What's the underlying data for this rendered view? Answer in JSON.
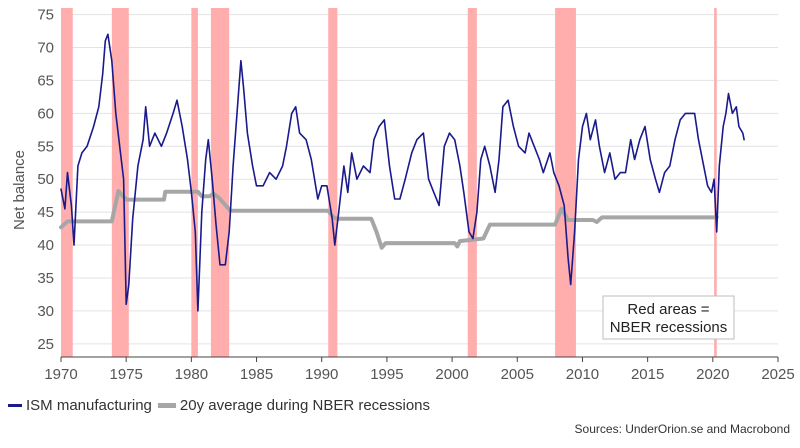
{
  "chart_data": {
    "type": "line",
    "ylabel": "Net balance",
    "xlabel": "",
    "ylim": [
      23,
      76
    ],
    "xlim": [
      1970,
      2025
    ],
    "yticks": [
      25,
      30,
      35,
      40,
      45,
      50,
      55,
      60,
      65,
      70,
      75
    ],
    "xticks": [
      1970,
      1975,
      1980,
      1985,
      1990,
      1995,
      2000,
      2005,
      2010,
      2015,
      2020,
      2025
    ],
    "grid": true,
    "legend_position": "bottom-left",
    "recessions": [
      [
        1970.0,
        1970.9
      ],
      [
        1973.9,
        1975.2
      ],
      [
        1980.0,
        1980.5
      ],
      [
        1981.5,
        1982.9
      ],
      [
        1990.5,
        1991.2
      ],
      [
        2001.2,
        2001.9
      ],
      [
        2007.9,
        2009.5
      ],
      [
        2020.1,
        2020.3
      ]
    ],
    "annotation": {
      "line1": "Red areas =",
      "line2": "NBER recessions"
    },
    "series": [
      {
        "name": "ISM manufacturing",
        "color": "#1a1a8c",
        "points": [
          [
            1970.0,
            48.5
          ],
          [
            1970.3,
            45.5
          ],
          [
            1970.5,
            51
          ],
          [
            1970.8,
            46
          ],
          [
            1971.0,
            40
          ],
          [
            1971.3,
            52
          ],
          [
            1971.6,
            54
          ],
          [
            1972.0,
            55
          ],
          [
            1972.5,
            58
          ],
          [
            1972.9,
            61
          ],
          [
            1973.2,
            66
          ],
          [
            1973.4,
            71
          ],
          [
            1973.6,
            72
          ],
          [
            1973.9,
            68
          ],
          [
            1974.2,
            60
          ],
          [
            1974.5,
            55
          ],
          [
            1974.8,
            50
          ],
          [
            1975.0,
            31
          ],
          [
            1975.2,
            34
          ],
          [
            1975.5,
            44
          ],
          [
            1975.9,
            52
          ],
          [
            1976.3,
            56
          ],
          [
            1976.5,
            61
          ],
          [
            1976.8,
            55
          ],
          [
            1977.2,
            57
          ],
          [
            1977.7,
            55
          ],
          [
            1978.1,
            57
          ],
          [
            1978.6,
            60
          ],
          [
            1978.9,
            62
          ],
          [
            1979.3,
            58
          ],
          [
            1979.7,
            53
          ],
          [
            1980.0,
            48
          ],
          [
            1980.3,
            42
          ],
          [
            1980.5,
            30
          ],
          [
            1980.8,
            45
          ],
          [
            1981.1,
            53
          ],
          [
            1981.3,
            56
          ],
          [
            1981.6,
            50
          ],
          [
            1981.9,
            43
          ],
          [
            1982.2,
            37
          ],
          [
            1982.6,
            37
          ],
          [
            1982.9,
            42
          ],
          [
            1983.2,
            52
          ],
          [
            1983.5,
            60
          ],
          [
            1983.8,
            68
          ],
          [
            1984.0,
            64
          ],
          [
            1984.3,
            57
          ],
          [
            1984.7,
            52
          ],
          [
            1985.0,
            49
          ],
          [
            1985.5,
            49
          ],
          [
            1986.0,
            51
          ],
          [
            1986.5,
            50
          ],
          [
            1987.0,
            52
          ],
          [
            1987.3,
            55
          ],
          [
            1987.7,
            60
          ],
          [
            1988.0,
            61
          ],
          [
            1988.3,
            57
          ],
          [
            1988.8,
            56
          ],
          [
            1989.2,
            53
          ],
          [
            1989.7,
            47
          ],
          [
            1990.0,
            49
          ],
          [
            1990.4,
            49
          ],
          [
            1990.8,
            44
          ],
          [
            1991.0,
            40
          ],
          [
            1991.3,
            45
          ],
          [
            1991.7,
            52
          ],
          [
            1992.0,
            48
          ],
          [
            1992.3,
            54
          ],
          [
            1992.7,
            50
          ],
          [
            1993.2,
            52
          ],
          [
            1993.7,
            51
          ],
          [
            1994.0,
            56
          ],
          [
            1994.4,
            58
          ],
          [
            1994.8,
            59
          ],
          [
            1995.2,
            52
          ],
          [
            1995.6,
            47
          ],
          [
            1996.0,
            47
          ],
          [
            1996.4,
            50
          ],
          [
            1996.9,
            54
          ],
          [
            1997.3,
            56
          ],
          [
            1997.8,
            57
          ],
          [
            1998.2,
            50
          ],
          [
            1998.6,
            48
          ],
          [
            1999.0,
            46
          ],
          [
            1999.4,
            55
          ],
          [
            1999.8,
            57
          ],
          [
            2000.2,
            56
          ],
          [
            2000.6,
            52
          ],
          [
            2000.9,
            48
          ],
          [
            2001.3,
            42
          ],
          [
            2001.6,
            41
          ],
          [
            2001.9,
            45
          ],
          [
            2002.2,
            53
          ],
          [
            2002.5,
            55
          ],
          [
            2002.9,
            52
          ],
          [
            2003.3,
            48
          ],
          [
            2003.6,
            53
          ],
          [
            2003.9,
            61
          ],
          [
            2004.3,
            62
          ],
          [
            2004.7,
            58
          ],
          [
            2005.1,
            55
          ],
          [
            2005.6,
            54
          ],
          [
            2005.9,
            57
          ],
          [
            2006.3,
            55
          ],
          [
            2006.7,
            53
          ],
          [
            2007.0,
            51
          ],
          [
            2007.5,
            54
          ],
          [
            2007.8,
            51
          ],
          [
            2008.2,
            49
          ],
          [
            2008.6,
            46
          ],
          [
            2008.9,
            38
          ],
          [
            2009.1,
            34
          ],
          [
            2009.4,
            42
          ],
          [
            2009.7,
            53
          ],
          [
            2010.0,
            58
          ],
          [
            2010.3,
            60
          ],
          [
            2010.6,
            56
          ],
          [
            2011.0,
            59
          ],
          [
            2011.3,
            55
          ],
          [
            2011.7,
            51
          ],
          [
            2012.1,
            54
          ],
          [
            2012.5,
            50
          ],
          [
            2012.9,
            51
          ],
          [
            2013.3,
            51
          ],
          [
            2013.7,
            56
          ],
          [
            2014.0,
            53
          ],
          [
            2014.4,
            56
          ],
          [
            2014.8,
            58
          ],
          [
            2015.2,
            53
          ],
          [
            2015.6,
            50
          ],
          [
            2015.9,
            48
          ],
          [
            2016.3,
            51
          ],
          [
            2016.7,
            52
          ],
          [
            2017.1,
            56
          ],
          [
            2017.5,
            59
          ],
          [
            2017.9,
            60
          ],
          [
            2018.3,
            60
          ],
          [
            2018.6,
            60
          ],
          [
            2018.9,
            56
          ],
          [
            2019.3,
            52
          ],
          [
            2019.6,
            49
          ],
          [
            2019.9,
            48
          ],
          [
            2020.1,
            50
          ],
          [
            2020.3,
            42
          ],
          [
            2020.5,
            52
          ],
          [
            2020.8,
            58
          ],
          [
            2021.0,
            60
          ],
          [
            2021.2,
            63
          ],
          [
            2021.5,
            60
          ],
          [
            2021.8,
            61
          ],
          [
            2022.0,
            58
          ],
          [
            2022.3,
            57
          ],
          [
            2022.4,
            56
          ]
        ]
      },
      {
        "name": "20y average during NBER recessions",
        "color": "#a6a6a6",
        "points": [
          [
            1970.0,
            42.7
          ],
          [
            1970.5,
            43.6
          ],
          [
            1973.9,
            43.6
          ],
          [
            1974.4,
            48.2
          ],
          [
            1975.0,
            46.9
          ],
          [
            1977.9,
            46.9
          ],
          [
            1978.0,
            48.1
          ],
          [
            1980.5,
            48.1
          ],
          [
            1980.8,
            47.4
          ],
          [
            1981.4,
            47.4
          ],
          [
            1981.7,
            47.8
          ],
          [
            1982.1,
            47.2
          ],
          [
            1983.0,
            45.2
          ],
          [
            1990.5,
            45.2
          ],
          [
            1990.9,
            44.2
          ],
          [
            1991.2,
            44.0
          ],
          [
            1993.8,
            44.0
          ],
          [
            1994.2,
            42.0
          ],
          [
            1994.6,
            39.6
          ],
          [
            1994.9,
            40.3
          ],
          [
            2000.2,
            40.3
          ],
          [
            2000.4,
            39.8
          ],
          [
            2000.6,
            40.6
          ],
          [
            2002.4,
            41.0
          ],
          [
            2002.9,
            43.1
          ],
          [
            2007.9,
            43.1
          ],
          [
            2008.4,
            45.5
          ],
          [
            2008.9,
            43.8
          ],
          [
            2010.8,
            43.8
          ],
          [
            2011.1,
            43.5
          ],
          [
            2011.5,
            44.2
          ],
          [
            2020.3,
            44.2
          ]
        ]
      }
    ],
    "source": "Sources: UnderOrion.se and Macrobond"
  }
}
